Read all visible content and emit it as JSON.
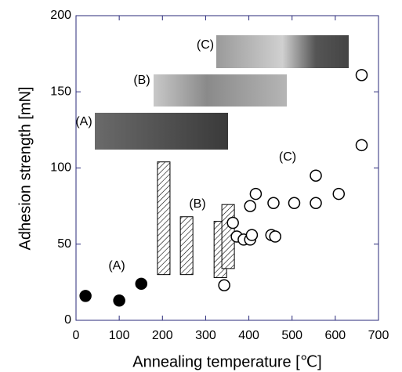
{
  "chart_data": {
    "type": "scatter",
    "xlabel": "Annealing temperature [℃]",
    "ylabel": "Adhesion strength [mN]",
    "xlim": [
      0,
      700
    ],
    "xticks": [
      0,
      100,
      200,
      300,
      400,
      500,
      600,
      700
    ],
    "ylim": [
      0,
      200
    ],
    "yticks": [
      0,
      50,
      100,
      150,
      200
    ],
    "series": [
      {
        "marker": "filled",
        "color": "#000000",
        "x": [
          22,
          100,
          151
        ],
        "values": [
          16,
          13,
          24
        ]
      },
      {
        "marker": "open",
        "color": "#000000",
        "x": [
          343,
          363,
          372,
          388,
          403,
          403,
          407,
          416,
          452,
          461,
          457,
          505,
          555,
          555,
          608,
          661,
          661
        ],
        "values": [
          23,
          64,
          55,
          53,
          53,
          75,
          56,
          83,
          56,
          55,
          77,
          77,
          95,
          77,
          83,
          161,
          115
        ]
      }
    ],
    "ranges": [
      {
        "x": 203,
        "low": 30,
        "high": 104
      },
      {
        "x": 256,
        "low": 30,
        "high": 68
      },
      {
        "x": 334,
        "low": 28,
        "high": 65
      },
      {
        "x": 352,
        "low": 34,
        "high": 76
      }
    ],
    "annotations": [
      "(A)",
      "(B)",
      "(C)"
    ],
    "insets": [
      "(A)",
      "(B)",
      "(C)"
    ]
  }
}
